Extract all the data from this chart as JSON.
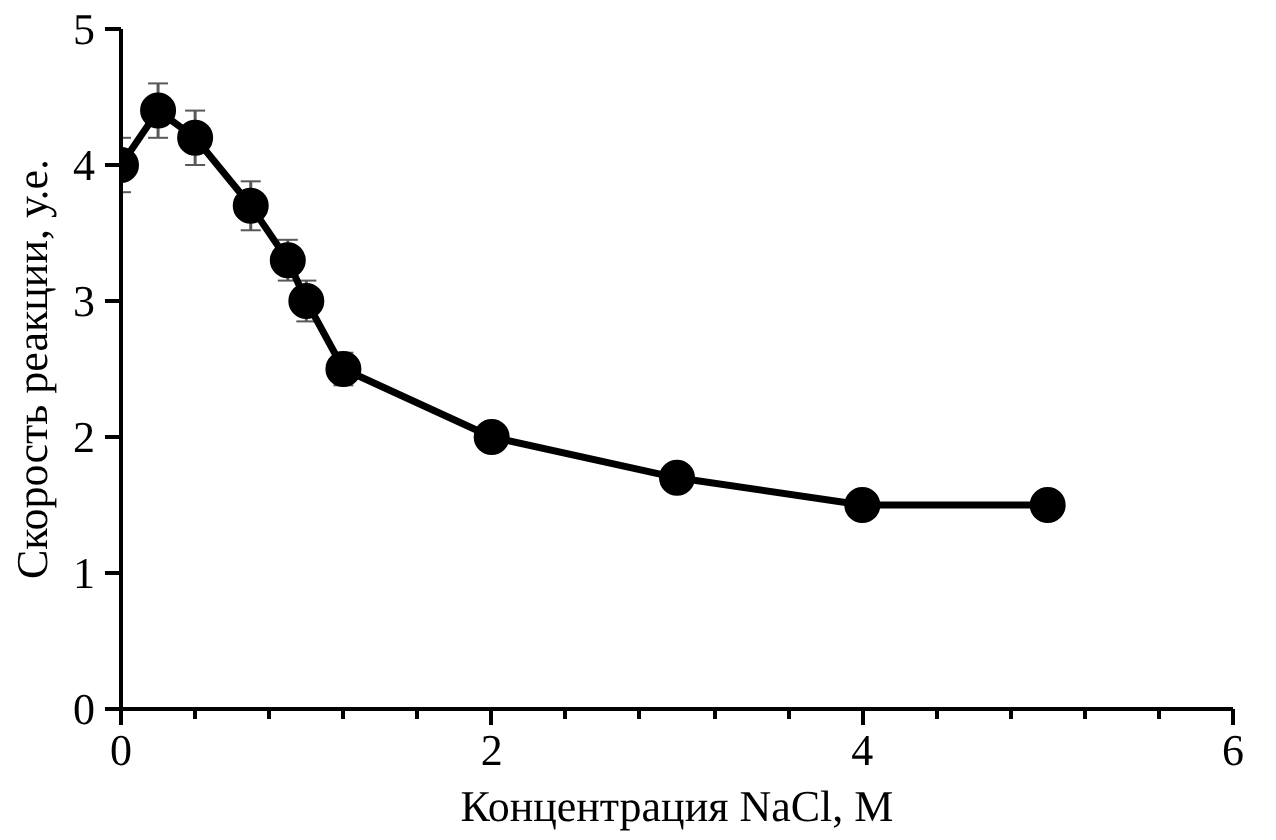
{
  "chart_data": {
    "type": "line",
    "xlabel": "Концентрация NaCl, M",
    "ylabel": "Скорость реакции, у.е.",
    "x": [
      0,
      0.2,
      0.4,
      0.7,
      0.9,
      1.0,
      1.2,
      2,
      3,
      4,
      5
    ],
    "series": [
      {
        "color": "#000000",
        "values": [
          4.0,
          4.4,
          4.2,
          3.7,
          3.3,
          3.0,
          2.5,
          2.0,
          1.7,
          1.5,
          1.5
        ],
        "errors": [
          0.2,
          0.2,
          0.2,
          0.18,
          0.15,
          0.15,
          0.12,
          0.1,
          null,
          null,
          null
        ]
      }
    ],
    "xlim": [
      0,
      6
    ],
    "xticks": [
      0,
      2,
      4,
      6
    ],
    "ylim": [
      0,
      5
    ],
    "yticks": [
      0,
      1,
      2,
      3,
      4,
      5
    ],
    "marker": "circle",
    "line_style": "solid",
    "grid": false
  }
}
